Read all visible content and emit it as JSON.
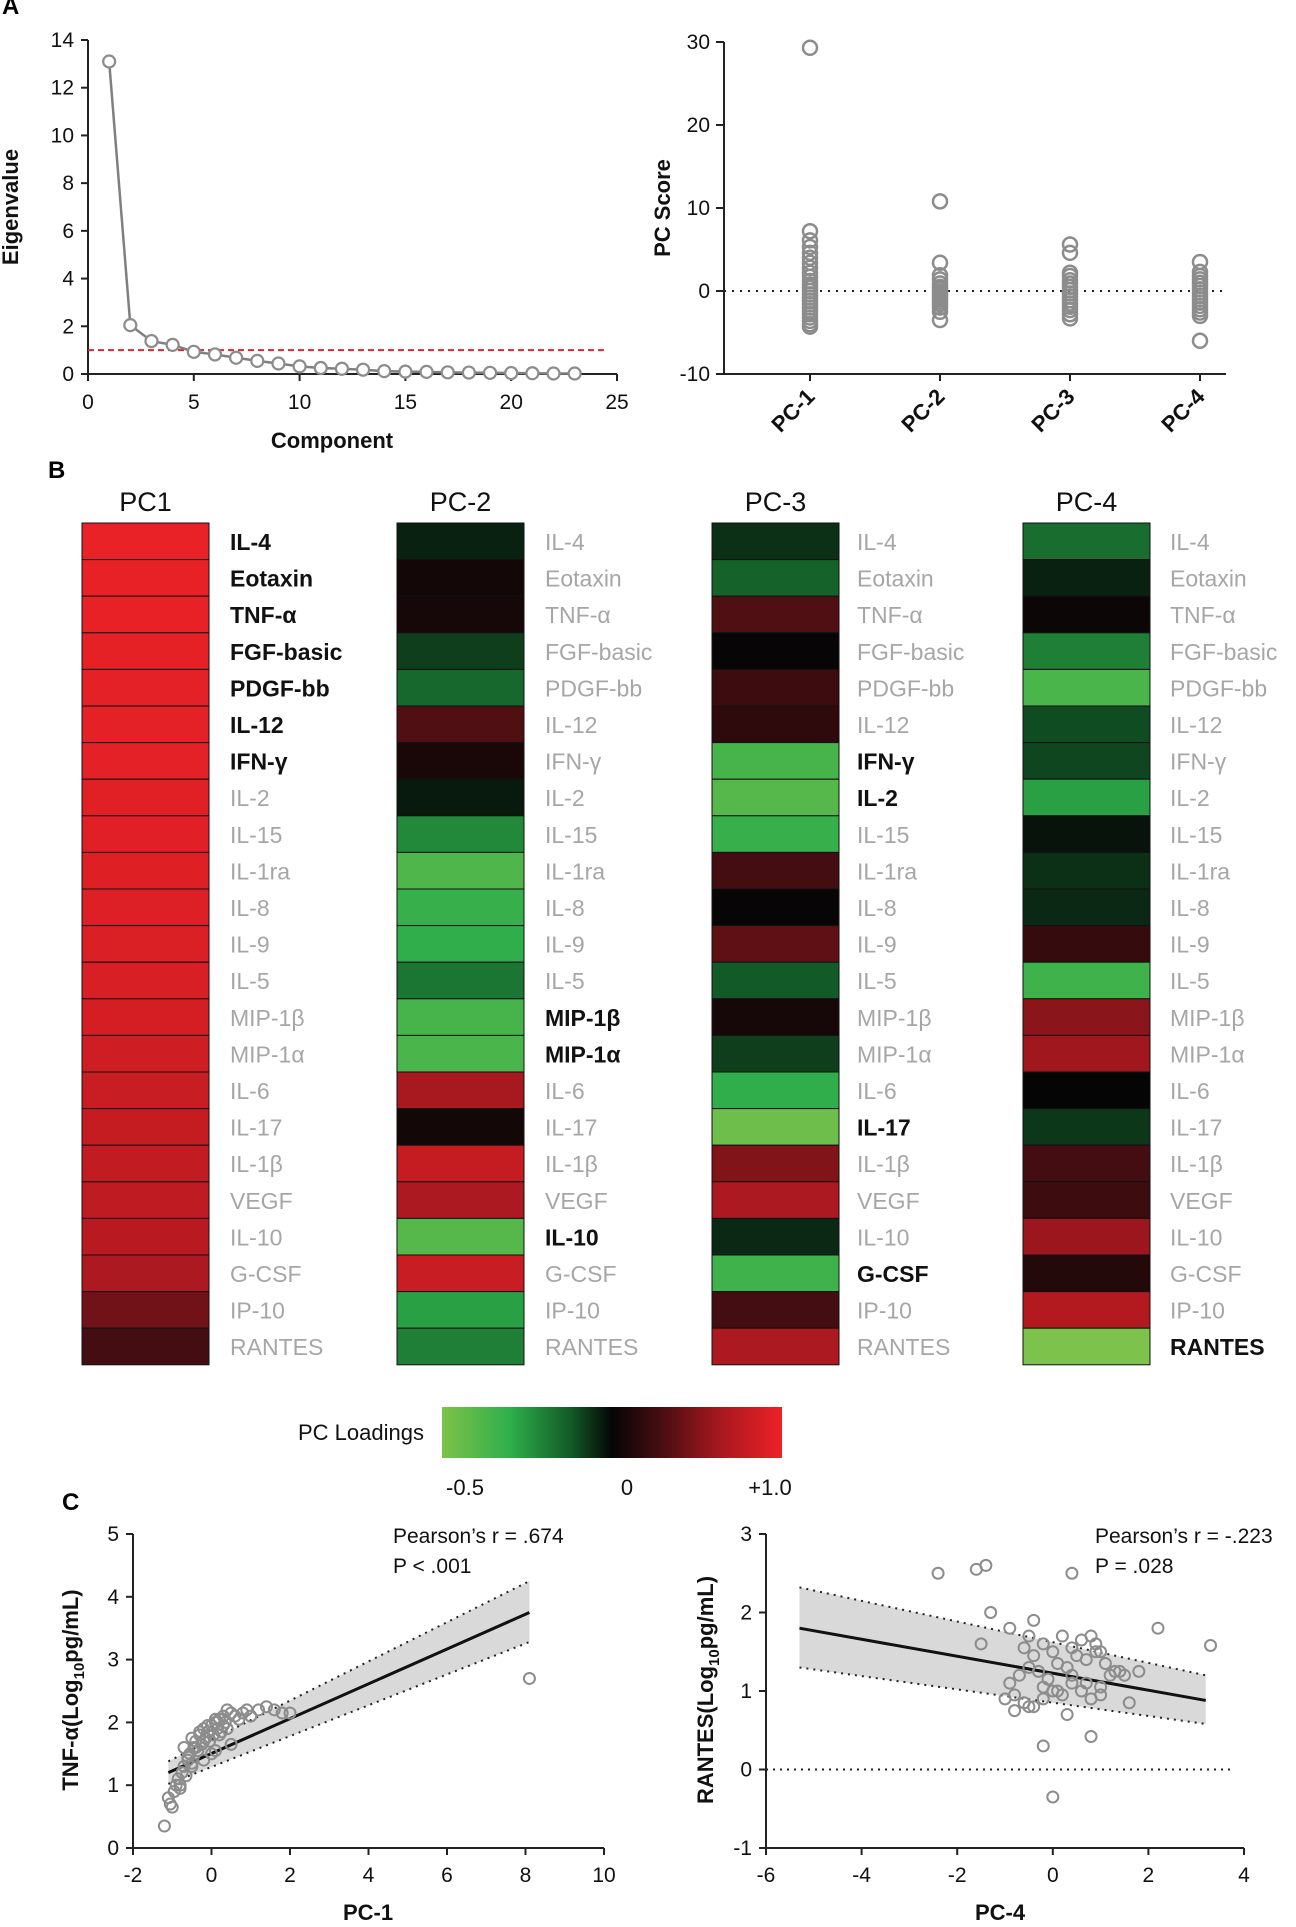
{
  "panels": {
    "a": "A",
    "b": "B",
    "c": "C"
  },
  "colors": {
    "accent_red": "#e32227",
    "green_low": "#7dc24a",
    "marker_gray": "#8c8c8c",
    "reference_line": "#e3262b"
  },
  "chart_data": [
    {
      "id": "scree",
      "type": "line",
      "title": "",
      "xlabel": "Component",
      "ylabel": "Eigenvalue",
      "xlim": [
        0,
        25
      ],
      "ylim": [
        0,
        14
      ],
      "xticks": [
        0,
        5,
        10,
        15,
        20,
        25
      ],
      "yticks": [
        0,
        2,
        4,
        6,
        8,
        10,
        12,
        14
      ],
      "x": [
        1,
        2,
        3,
        4,
        5,
        6,
        7,
        8,
        9,
        10,
        11,
        12,
        13,
        14,
        15,
        16,
        17,
        18,
        19,
        20,
        21,
        22,
        23
      ],
      "values": [
        13.1,
        2.05,
        1.38,
        1.22,
        0.93,
        0.82,
        0.68,
        0.55,
        0.44,
        0.32,
        0.25,
        0.22,
        0.18,
        0.12,
        0.1,
        0.09,
        0.07,
        0.06,
        0.05,
        0.04,
        0.03,
        0.02,
        0.02
      ],
      "reference_line": {
        "y": 1,
        "style": "dashed",
        "color": "#e3262b"
      }
    },
    {
      "id": "pcscores",
      "type": "scatter",
      "title": "",
      "xlabel": "",
      "ylabel": "PC Score",
      "ylim": [
        -10,
        30
      ],
      "yticks": [
        -10,
        0,
        10,
        20,
        30
      ],
      "categories": [
        "PC-1",
        "PC-2",
        "PC-3",
        "PC-4"
      ],
      "series": [
        {
          "name": "PC-1",
          "values": [
            29.3,
            7.2,
            6.1,
            5.3,
            4.6,
            4.0,
            3.4,
            2.8,
            2.2,
            1.7,
            1.2,
            0.8,
            0.4,
            0.0,
            -0.4,
            -0.8,
            -1.2,
            -1.6,
            -2.0,
            -2.4,
            -2.8,
            -3.2,
            -3.6,
            -4.0,
            -4.3
          ]
        },
        {
          "name": "PC-2",
          "values": [
            10.8,
            3.4,
            1.9,
            1.4,
            0.9,
            0.5,
            0.2,
            -0.1,
            -0.4,
            -0.7,
            -1.0,
            -1.3,
            -1.6,
            -2.0,
            -2.5,
            -3.5
          ]
        },
        {
          "name": "PC-3",
          "values": [
            5.6,
            4.6,
            2.2,
            1.8,
            1.3,
            0.9,
            0.5,
            0.1,
            -0.3,
            -0.7,
            -1.1,
            -1.5,
            -1.9,
            -2.3,
            -2.8,
            -3.3
          ]
        },
        {
          "name": "PC-4",
          "values": [
            3.5,
            2.3,
            1.8,
            1.4,
            1.0,
            0.6,
            0.2,
            -0.2,
            -0.6,
            -1.0,
            -1.4,
            -1.8,
            -2.2,
            -2.6,
            -3.0,
            -6.0
          ]
        }
      ],
      "reference_line": {
        "y": 0,
        "style": "dotted"
      }
    },
    {
      "id": "loadings",
      "type": "heatmap",
      "title": "PC Loadings",
      "columns": [
        "PC1",
        "PC-2",
        "PC-3",
        "PC-4"
      ],
      "rows": [
        "IL-4",
        "Eotaxin",
        "TNF-α",
        "FGF-basic",
        "PDGF-bb",
        "IL-12",
        "IFN-γ",
        "IL-2",
        "IL-15",
        "IL-1ra",
        "IL-8",
        "IL-9",
        "IL-5",
        "MIP-1β",
        "MIP-1α",
        "IL-6",
        "IL-17",
        "IL-1β",
        "VEGF",
        "IL-10",
        "G-CSF",
        "IP-10",
        "RANTES"
      ],
      "values": [
        [
          0.98,
          0.97,
          0.97,
          0.96,
          0.95,
          0.95,
          0.94,
          0.93,
          0.92,
          0.91,
          0.9,
          0.89,
          0.87,
          0.84,
          0.8,
          0.76,
          0.74,
          0.72,
          0.7,
          0.66,
          0.58,
          0.34,
          0.18
        ],
        [
          -0.04,
          0.04,
          0.05,
          -0.08,
          -0.15,
          0.22,
          0.06,
          -0.03,
          -0.22,
          -0.38,
          -0.32,
          -0.3,
          -0.18,
          -0.36,
          -0.37,
          0.55,
          0.04,
          0.74,
          0.58,
          -0.4,
          0.76,
          -0.27,
          -0.2
        ],
        [
          -0.06,
          -0.14,
          0.22,
          0.01,
          0.16,
          0.12,
          -0.36,
          -0.4,
          -0.32,
          0.18,
          0.01,
          0.28,
          -0.12,
          0.05,
          -0.08,
          -0.3,
          -0.46,
          0.4,
          0.58,
          -0.05,
          -0.34,
          0.18,
          0.58
        ],
        [
          -0.16,
          -0.04,
          0.02,
          -0.2,
          -0.37,
          -0.1,
          -0.09,
          -0.27,
          -0.02,
          -0.06,
          -0.05,
          0.14,
          -0.34,
          0.44,
          0.52,
          0.0,
          -0.07,
          0.18,
          0.16,
          0.5,
          0.09,
          0.62,
          -0.5
        ]
      ],
      "bold_rows": {
        "PC1": [
          "IL-4",
          "Eotaxin",
          "TNF-α",
          "FGF-basic",
          "PDGF-bb",
          "IL-12",
          "IFN-γ"
        ],
        "PC-2": [
          "MIP-1β",
          "MIP-1α",
          "IL-10"
        ],
        "PC-3": [
          "IFN-γ",
          "IL-2",
          "IL-17",
          "G-CSF"
        ],
        "PC-4": [
          "RANTES"
        ]
      },
      "colorbar": {
        "label": "PC Loadings",
        "ticks": [
          "-0.5",
          "0",
          "+1.0"
        ],
        "range": [
          -0.5,
          1.0
        ]
      }
    },
    {
      "id": "corr_tnf",
      "type": "scatter",
      "title": "",
      "xlabel": "PC-1",
      "ylabel_main": "TNF-α(Log",
      "ylabel_sub": "10",
      "ylabel_end": "pg/mL)",
      "xlim": [
        -2,
        10
      ],
      "ylim": [
        0,
        5
      ],
      "xticks": [
        -2,
        0,
        2,
        4,
        6,
        8,
        10
      ],
      "yticks": [
        0,
        1,
        2,
        3,
        4,
        5
      ],
      "annotation": [
        "Pearson’s r = .674",
        "P < .001"
      ],
      "fit": {
        "x": [
          -1.1,
          8.1
        ],
        "y": [
          1.2,
          3.75
        ],
        "ci_upper": [
          1.38,
          4.25
        ],
        "ci_lower": [
          1.02,
          3.28
        ]
      },
      "x": [
        -1.2,
        -1.1,
        -1.05,
        -1.0,
        -0.95,
        -0.9,
        -0.85,
        -0.8,
        -0.75,
        -0.7,
        -0.65,
        -0.6,
        -0.55,
        -0.5,
        -0.45,
        -0.4,
        -0.35,
        -0.3,
        -0.25,
        -0.2,
        -0.15,
        -0.1,
        -0.05,
        0.0,
        0.05,
        0.1,
        0.15,
        0.2,
        0.25,
        0.3,
        0.35,
        0.4,
        0.5,
        0.6,
        0.7,
        0.8,
        0.9,
        1.0,
        1.2,
        1.4,
        1.6,
        1.8,
        2.0,
        -0.7,
        -0.5,
        -0.3,
        -0.1,
        0.1,
        0.3,
        -0.6,
        -0.4,
        -0.2,
        0.0,
        0.2,
        0.4,
        -0.8,
        -0.5,
        -0.2,
        0.1,
        0.5,
        8.1
      ],
      "y": [
        0.35,
        0.8,
        0.7,
        0.65,
        0.9,
        1.0,
        1.1,
        0.95,
        1.2,
        1.3,
        1.15,
        1.4,
        1.5,
        1.35,
        1.6,
        1.7,
        1.55,
        1.8,
        1.65,
        1.9,
        1.75,
        1.85,
        1.7,
        1.95,
        1.8,
        2.0,
        1.9,
        2.05,
        1.85,
        2.1,
        2.0,
        2.2,
        2.15,
        2.1,
        2.05,
        2.15,
        2.2,
        2.1,
        2.2,
        2.25,
        2.2,
        2.15,
        2.15,
        1.6,
        1.75,
        1.85,
        1.95,
        2.05,
        1.95,
        1.45,
        1.6,
        1.7,
        1.5,
        1.8,
        1.9,
        1.0,
        1.3,
        1.4,
        1.55,
        1.65,
        2.7
      ]
    },
    {
      "id": "corr_rantes",
      "type": "scatter",
      "title": "",
      "xlabel": "PC-4",
      "ylabel_main": "RANTES(Log",
      "ylabel_sub": "10",
      "ylabel_end": "pg/mL)",
      "xlim": [
        -6,
        4
      ],
      "ylim": [
        -1,
        3
      ],
      "xticks": [
        -6,
        -4,
        -2,
        0,
        2,
        4
      ],
      "yticks": [
        -1,
        0,
        1,
        2,
        3
      ],
      "annotation": [
        "Pearson’s r = -.223",
        "P = .028"
      ],
      "fit": {
        "x": [
          -5.3,
          3.2
        ],
        "y": [
          1.8,
          0.88
        ],
        "ci_upper": [
          2.32,
          1.2
        ],
        "ci_lower": [
          1.3,
          0.58
        ]
      },
      "x": [
        -2.4,
        -1.6,
        -1.4,
        -1.3,
        -1.5,
        -0.9,
        0.4,
        -0.5,
        0.9,
        2.2,
        3.3,
        1.8,
        -1.0,
        -0.8,
        -0.6,
        -0.4,
        -0.2,
        0.0,
        0.2,
        0.4,
        0.6,
        0.8,
        1.0,
        1.2,
        1.4,
        1.6,
        -0.9,
        -0.7,
        -0.5,
        -0.3,
        -0.1,
        0.1,
        0.3,
        0.5,
        0.7,
        0.9,
        1.1,
        1.3,
        -0.6,
        -0.4,
        -0.2,
        0.0,
        0.2,
        0.4,
        0.6,
        0.8,
        1.0,
        -0.8,
        -0.5,
        -0.2,
        0.1,
        0.4,
        0.7,
        1.0,
        1.5,
        -0.2,
        -0.4,
        0.8,
        0.0,
        0.3
      ],
      "y": [
        2.5,
        2.55,
        2.6,
        2.0,
        1.6,
        1.8,
        2.5,
        1.7,
        1.6,
        1.8,
        1.58,
        1.25,
        0.9,
        0.95,
        0.85,
        0.8,
        0.9,
        1.0,
        0.95,
        1.1,
        1.0,
        0.9,
        1.05,
        1.2,
        1.25,
        0.85,
        1.1,
        1.2,
        1.3,
        1.25,
        1.15,
        1.35,
        1.3,
        1.45,
        1.4,
        1.5,
        1.35,
        1.25,
        1.55,
        1.45,
        1.6,
        1.5,
        1.7,
        1.55,
        1.65,
        1.7,
        1.5,
        0.75,
        0.8,
        1.05,
        1.0,
        1.2,
        1.1,
        0.95,
        1.2,
        0.3,
        1.9,
        0.42,
        -0.35,
        0.7
      ]
    }
  ]
}
